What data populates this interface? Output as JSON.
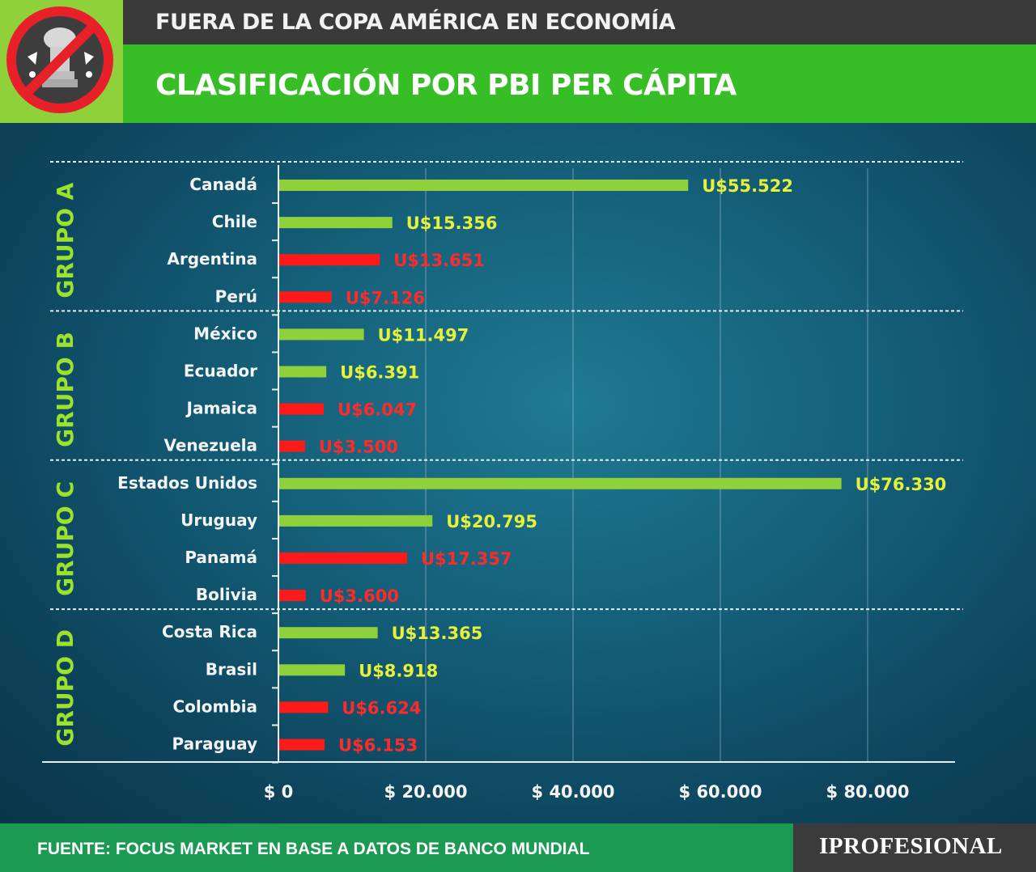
{
  "header": {
    "kicker": "FUERA DE LA COPA AMÉRICA EN ECONOMÍA",
    "title": "CLASIFICACIÓN POR PBI PER CÁPITA"
  },
  "logo": {
    "icon": "no-copa-america-icon"
  },
  "footer": {
    "source": "FUENTE: FOCUS MARKET EN BASE A DATOS DE BANCO MUNDIAL",
    "brand": "IPROFESIONAL"
  },
  "colors": {
    "highlight": "#ff1a1a",
    "normal": "#8fd13b",
    "group_label": "#9be22d",
    "value_normal": "#e6f23a",
    "value_highlight": "#ff2a2a"
  },
  "chart_data": {
    "type": "bar",
    "orientation": "horizontal",
    "xlim": [
      0,
      90000
    ],
    "x_ticks": [
      0,
      20000,
      40000,
      60000,
      80000
    ],
    "x_tick_labels": [
      "$ 0",
      "$ 20.000",
      "$ 40.000",
      "$ 60.000",
      "$ 80.000"
    ],
    "grid": true,
    "groups": [
      {
        "name": "GRUPO A",
        "items": [
          {
            "country": "Canadá",
            "value": 55522,
            "label": "U$55.522",
            "highlight": false
          },
          {
            "country": "Chile",
            "value": 15356,
            "label": "U$15.356",
            "highlight": false
          },
          {
            "country": "Argentina",
            "value": 13651,
            "label": "U$13.651",
            "highlight": true
          },
          {
            "country": "Perú",
            "value": 7126,
            "label": "U$7.126",
            "highlight": true
          }
        ]
      },
      {
        "name": "GRUPO B",
        "items": [
          {
            "country": "México",
            "value": 11497,
            "label": "U$11.497",
            "highlight": false
          },
          {
            "country": "Ecuador",
            "value": 6391,
            "label": "U$6.391",
            "highlight": false
          },
          {
            "country": "Jamaica",
            "value": 6047,
            "label": "U$6.047",
            "highlight": true
          },
          {
            "country": "Venezuela",
            "value": 3500,
            "label": "U$3.500",
            "highlight": true
          }
        ]
      },
      {
        "name": "GRUPO C",
        "items": [
          {
            "country": "Estados Unidos",
            "value": 76330,
            "label": "U$76.330",
            "highlight": false
          },
          {
            "country": "Uruguay",
            "value": 20795,
            "label": "U$20.795",
            "highlight": false
          },
          {
            "country": "Panamá",
            "value": 17357,
            "label": "U$17.357",
            "highlight": true
          },
          {
            "country": "Bolivia",
            "value": 3600,
            "label": "U$3.600",
            "highlight": true
          }
        ]
      },
      {
        "name": "GRUPO D",
        "items": [
          {
            "country": "Costa Rica",
            "value": 13365,
            "label": "U$13.365",
            "highlight": false
          },
          {
            "country": "Brasil",
            "value": 8918,
            "label": "U$8.918",
            "highlight": false
          },
          {
            "country": "Colombia",
            "value": 6624,
            "label": "U$6.624",
            "highlight": true
          },
          {
            "country": "Paraguay",
            "value": 6153,
            "label": "U$6.153",
            "highlight": true
          }
        ]
      }
    ]
  }
}
